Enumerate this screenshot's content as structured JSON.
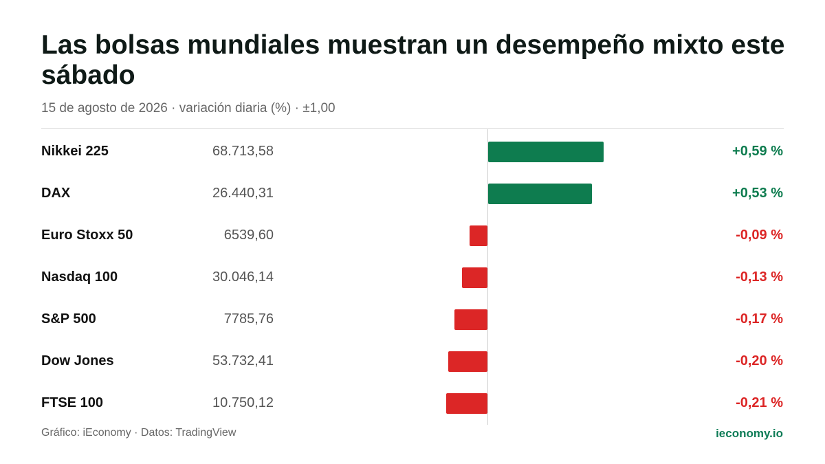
{
  "header": {
    "title": "Las bolsas mundiales muestran un desempeño mixto este sábado",
    "subtitle": "15 de agosto de 2026 · variación diaria (%) · ±1,00"
  },
  "colors": {
    "positive": "#0e7c4f",
    "negative": "#dc2626"
  },
  "chart_data": {
    "type": "bar",
    "orientation": "horizontal",
    "xlim": [
      -1.0,
      1.0
    ],
    "grid": false,
    "categories": [
      "Nikkei 225",
      "DAX",
      "Euro Stoxx 50",
      "Nasdaq 100",
      "S&P 500",
      "Dow Jones",
      "FTSE 100"
    ],
    "index_values": [
      "68.713,58",
      "26.440,31",
      "6539,60",
      "30.046,14",
      "7785,76",
      "53.732,41",
      "10.750,12"
    ],
    "values": [
      0.59,
      0.53,
      -0.09,
      -0.13,
      -0.17,
      -0.2,
      -0.21
    ],
    "labels": [
      "+0,59 %",
      "+0,53 %",
      "-0,09 %",
      "-0,13 %",
      "-0,17 %",
      "-0,20 %",
      "-0,21 %"
    ]
  },
  "footer": {
    "credit": "Gráfico: iEconomy · Datos: TradingView",
    "brand": "ieconomy.io"
  }
}
